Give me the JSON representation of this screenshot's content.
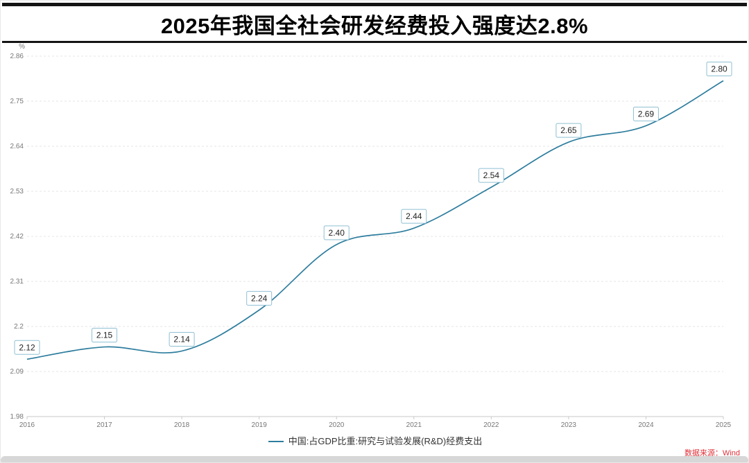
{
  "page": {
    "title": "2025年我国全社会研发经费投入强度达2.8%",
    "source_note": "数据来源：Wind"
  },
  "chart_data": {
    "type": "line",
    "title": "2025年我国全社会研发经费投入强度达2.8%",
    "x": [
      2016,
      2017,
      2018,
      2019,
      2020,
      2021,
      2022,
      2023,
      2024,
      2025
    ],
    "series": [
      {
        "name": "中国:占GDP比重:研究与试验发展(R&D)经费支出",
        "values": [
          2.12,
          2.15,
          2.14,
          2.24,
          2.4,
          2.44,
          2.54,
          2.65,
          2.69,
          2.8
        ],
        "point_labels": [
          "2.12",
          "2.15",
          "2.14",
          "2.24",
          "2.40",
          "2.44",
          "2.54",
          "2.65",
          "2.69",
          "2.80"
        ],
        "color": "#2e7d9e"
      }
    ],
    "ylabel": "%",
    "xlabel": "",
    "ylim": [
      1.98,
      2.86
    ],
    "yticks": [
      1.98,
      2.09,
      2.2,
      2.31,
      2.42,
      2.53,
      2.64,
      2.75,
      2.86
    ],
    "ytick_labels": [
      "1.98",
      "2.09",
      "2.2",
      "2.31",
      "2.42",
      "2.53",
      "2.64",
      "2.75",
      "2.86"
    ],
    "grid": true,
    "grid_style": "dashed-horizontal",
    "legend_position": "bottom-center",
    "colors": {
      "line": "#2e7d9e",
      "label_box_border": "#8fc0d2",
      "label_box_fill": "#ffffff",
      "grid": "#e6e6e6",
      "axis": "#c9c9c9",
      "tick_text": "#777777",
      "source_text": "#e03038",
      "title_text": "#000000"
    }
  }
}
